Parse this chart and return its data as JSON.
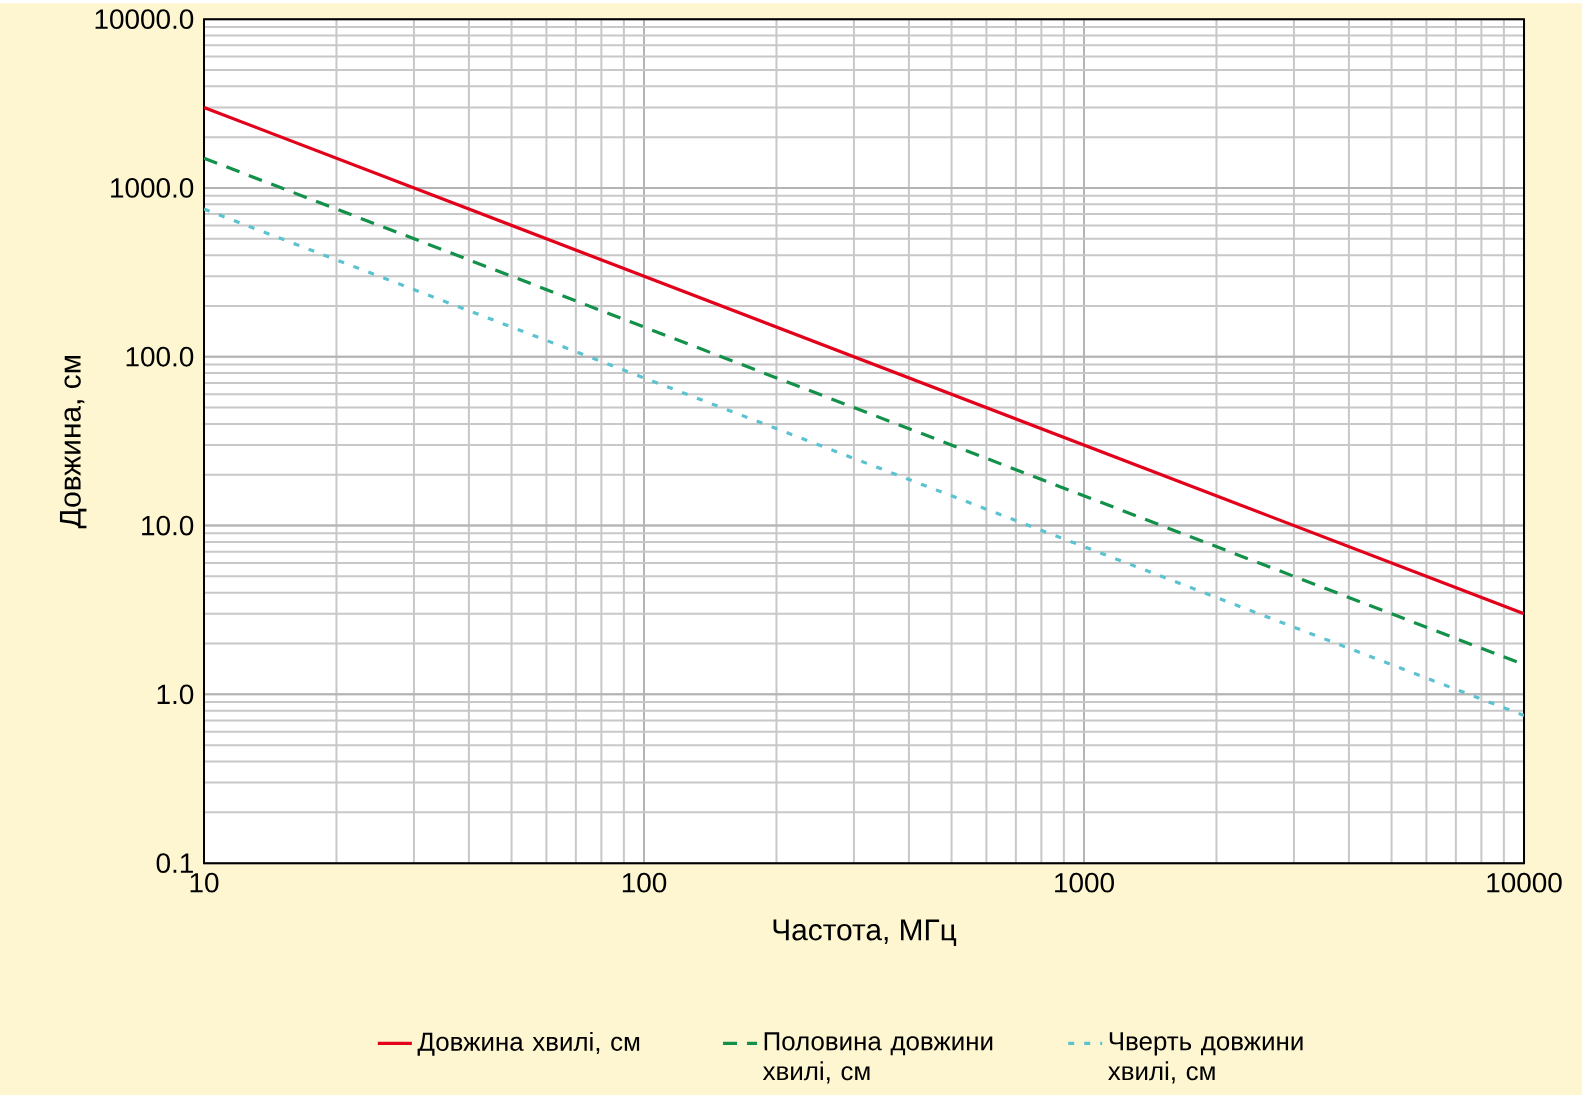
{
  "chart_data": {
    "type": "line",
    "xlabel": "Частота, МГц",
    "ylabel": "Довжина, см",
    "log": "xy",
    "grid": true,
    "legend": "bottom",
    "marker": "none",
    "xlim": [
      10,
      10000
    ],
    "ylim": [
      0.1,
      10000
    ],
    "xticks": [
      10,
      100,
      1000,
      10000
    ],
    "yticks": [
      {
        "value": 0.1,
        "label": "0.1"
      },
      {
        "value": 1,
        "label": "1.0"
      },
      {
        "value": 10,
        "label": "10.0"
      },
      {
        "value": 100,
        "label": "100.0"
      },
      {
        "value": 1000,
        "label": "1000.0"
      },
      {
        "value": 10000,
        "label": "10000.0"
      }
    ],
    "x": [
      10,
      10000
    ],
    "series": [
      {
        "name": "Довжина хвилі, см",
        "color": "#e3001b",
        "line_style": "solid",
        "values": [
          3000,
          3
        ]
      },
      {
        "name": "Половина довжини хвилі, см",
        "color": "#13904a",
        "line_style": "dashed",
        "values": [
          1500,
          1.5
        ]
      },
      {
        "name": "Чверть довжини хвилі, см",
        "color": "#5bc2d0",
        "line_style": "dotted",
        "values": [
          750,
          0.75
        ]
      }
    ]
  }
}
